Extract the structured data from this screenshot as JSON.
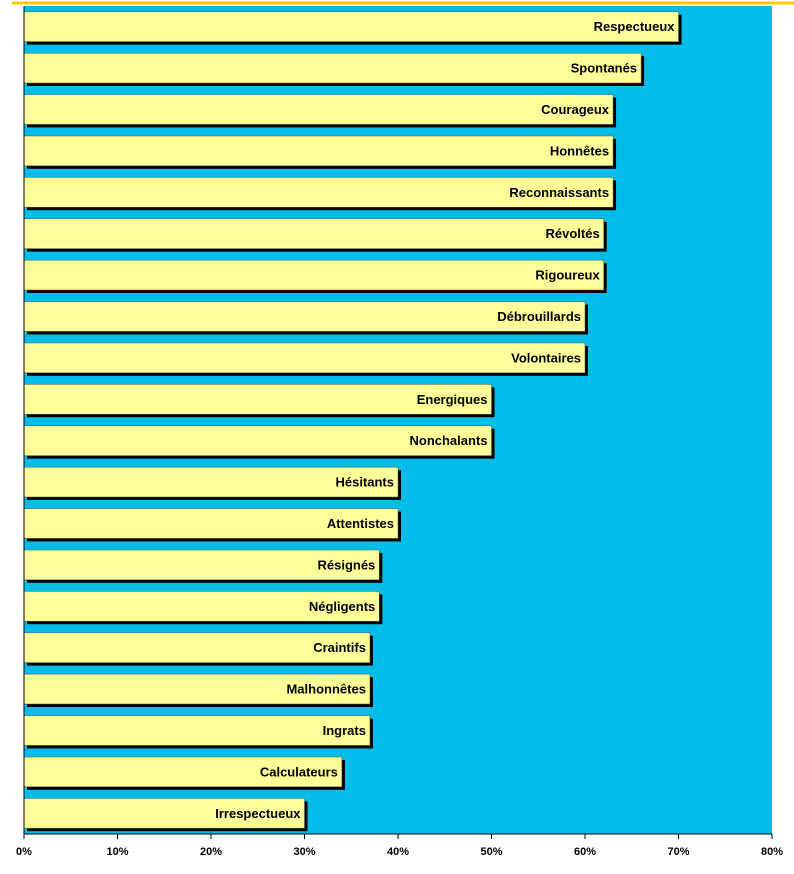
{
  "chart_data": {
    "type": "bar",
    "orientation": "horizontal",
    "title": "",
    "xlabel": "",
    "ylabel": "",
    "categories": [
      "Respectueux",
      "Spontanés",
      "Courageux",
      "Honnêtes",
      "Reconnaissants",
      "Révoltés",
      "Rigoureux",
      "Débrouillards",
      "Volontaires",
      "Energiques",
      "Nonchalants",
      "Hésitants",
      "Attentistes",
      "Résignés",
      "Négligents",
      "Craintifs",
      "Malhonnêtes",
      "Ingrats",
      "Calculateurs",
      "Irrespectueux"
    ],
    "values": [
      70,
      66,
      63,
      63,
      63,
      62,
      62,
      60,
      60,
      50,
      50,
      40,
      40,
      38,
      38,
      37,
      37,
      37,
      34,
      30
    ],
    "xlim": [
      0,
      80
    ],
    "ticks": [
      0,
      10,
      20,
      30,
      40,
      50,
      60,
      70,
      80
    ],
    "tick_labels": [
      "0%",
      "10%",
      "20%",
      "30%",
      "40%",
      "50%",
      "60%",
      "70%",
      "80%"
    ],
    "grid": false,
    "legend": "none",
    "colors": {
      "plot_background": "#00BCE8",
      "bar_fill": "#FFFF99",
      "bar_outline": "#555555",
      "bar_shadow": "#000000",
      "top_rule": "#FFCC00"
    }
  }
}
